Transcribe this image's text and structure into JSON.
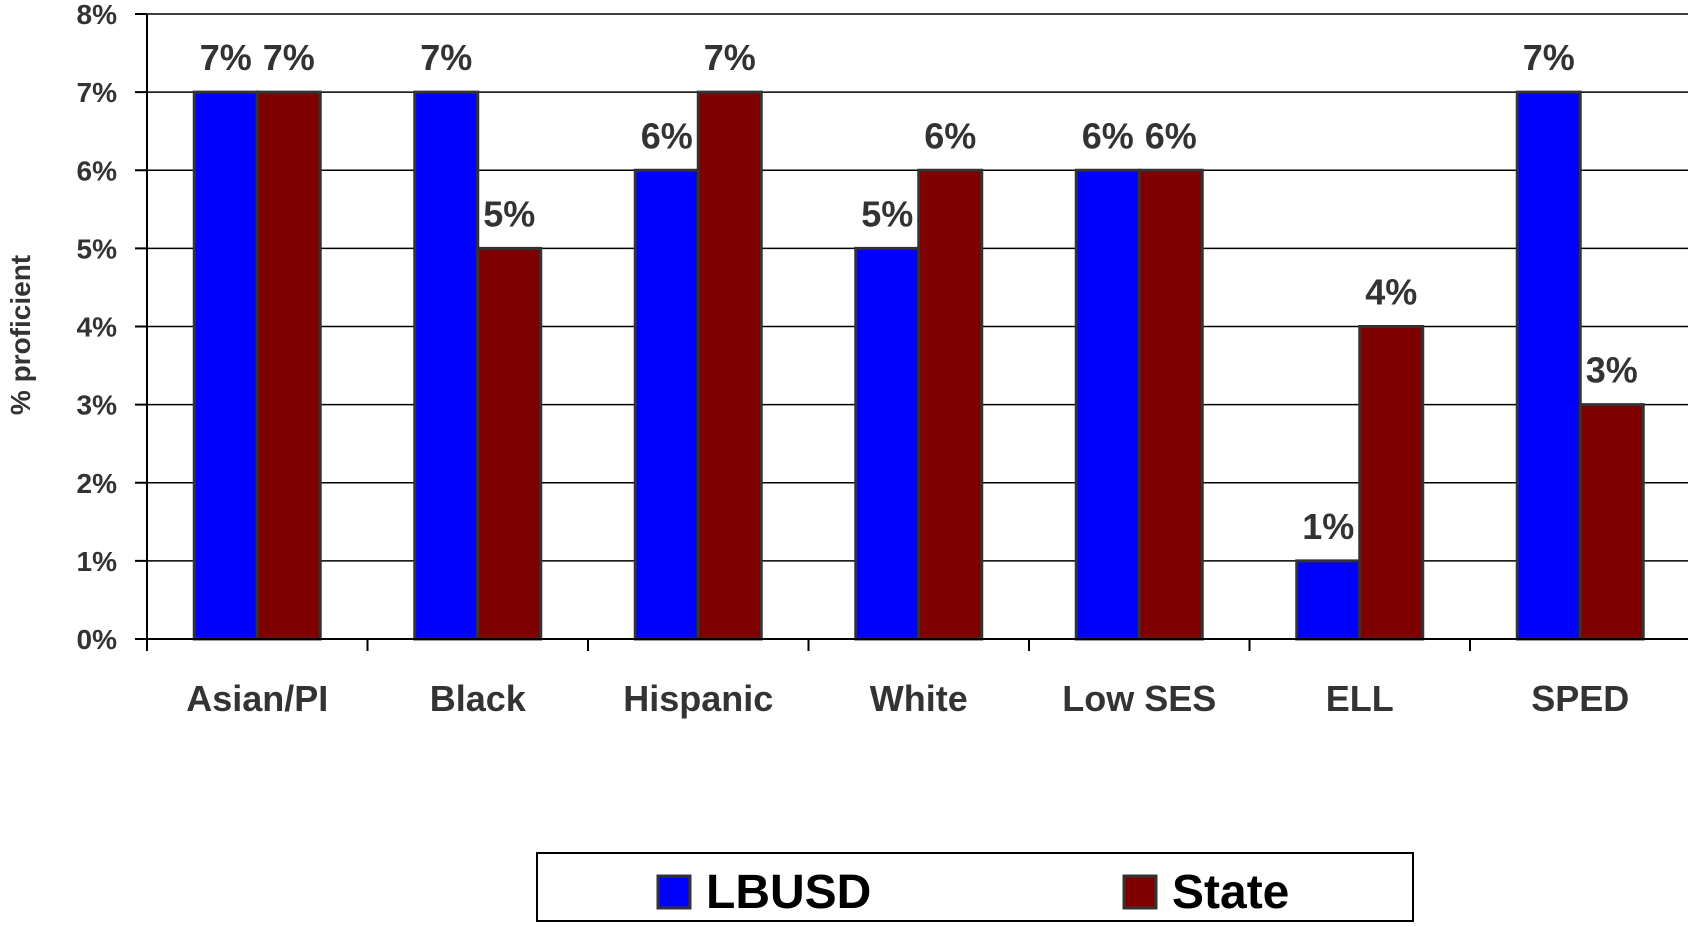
{
  "chart_data": {
    "type": "bar",
    "title": "",
    "xlabel": "",
    "ylabel": "% proficient",
    "ylim": [
      0,
      8
    ],
    "yticks": [
      "0%",
      "1%",
      "2%",
      "3%",
      "4%",
      "5%",
      "6%",
      "7%",
      "8%"
    ],
    "grid": true,
    "legend_position": "bottom",
    "categories": [
      "Asian/PI",
      "Black",
      "Hispanic",
      "White",
      "Low SES",
      "ELL",
      "SPED"
    ],
    "series": [
      {
        "name": "LBUSD",
        "color": "#0000FF",
        "values": [
          7,
          7,
          6,
          5,
          6,
          1,
          7
        ],
        "labels": [
          "7%",
          "7%",
          "6%",
          "5%",
          "6%",
          "1%",
          "7%"
        ]
      },
      {
        "name": "State",
        "color": "#800000",
        "values": [
          7,
          5,
          7,
          6,
          6,
          4,
          3
        ],
        "labels": [
          "7%",
          "5%",
          "7%",
          "6%",
          "6%",
          "4%",
          "3%"
        ]
      }
    ]
  }
}
